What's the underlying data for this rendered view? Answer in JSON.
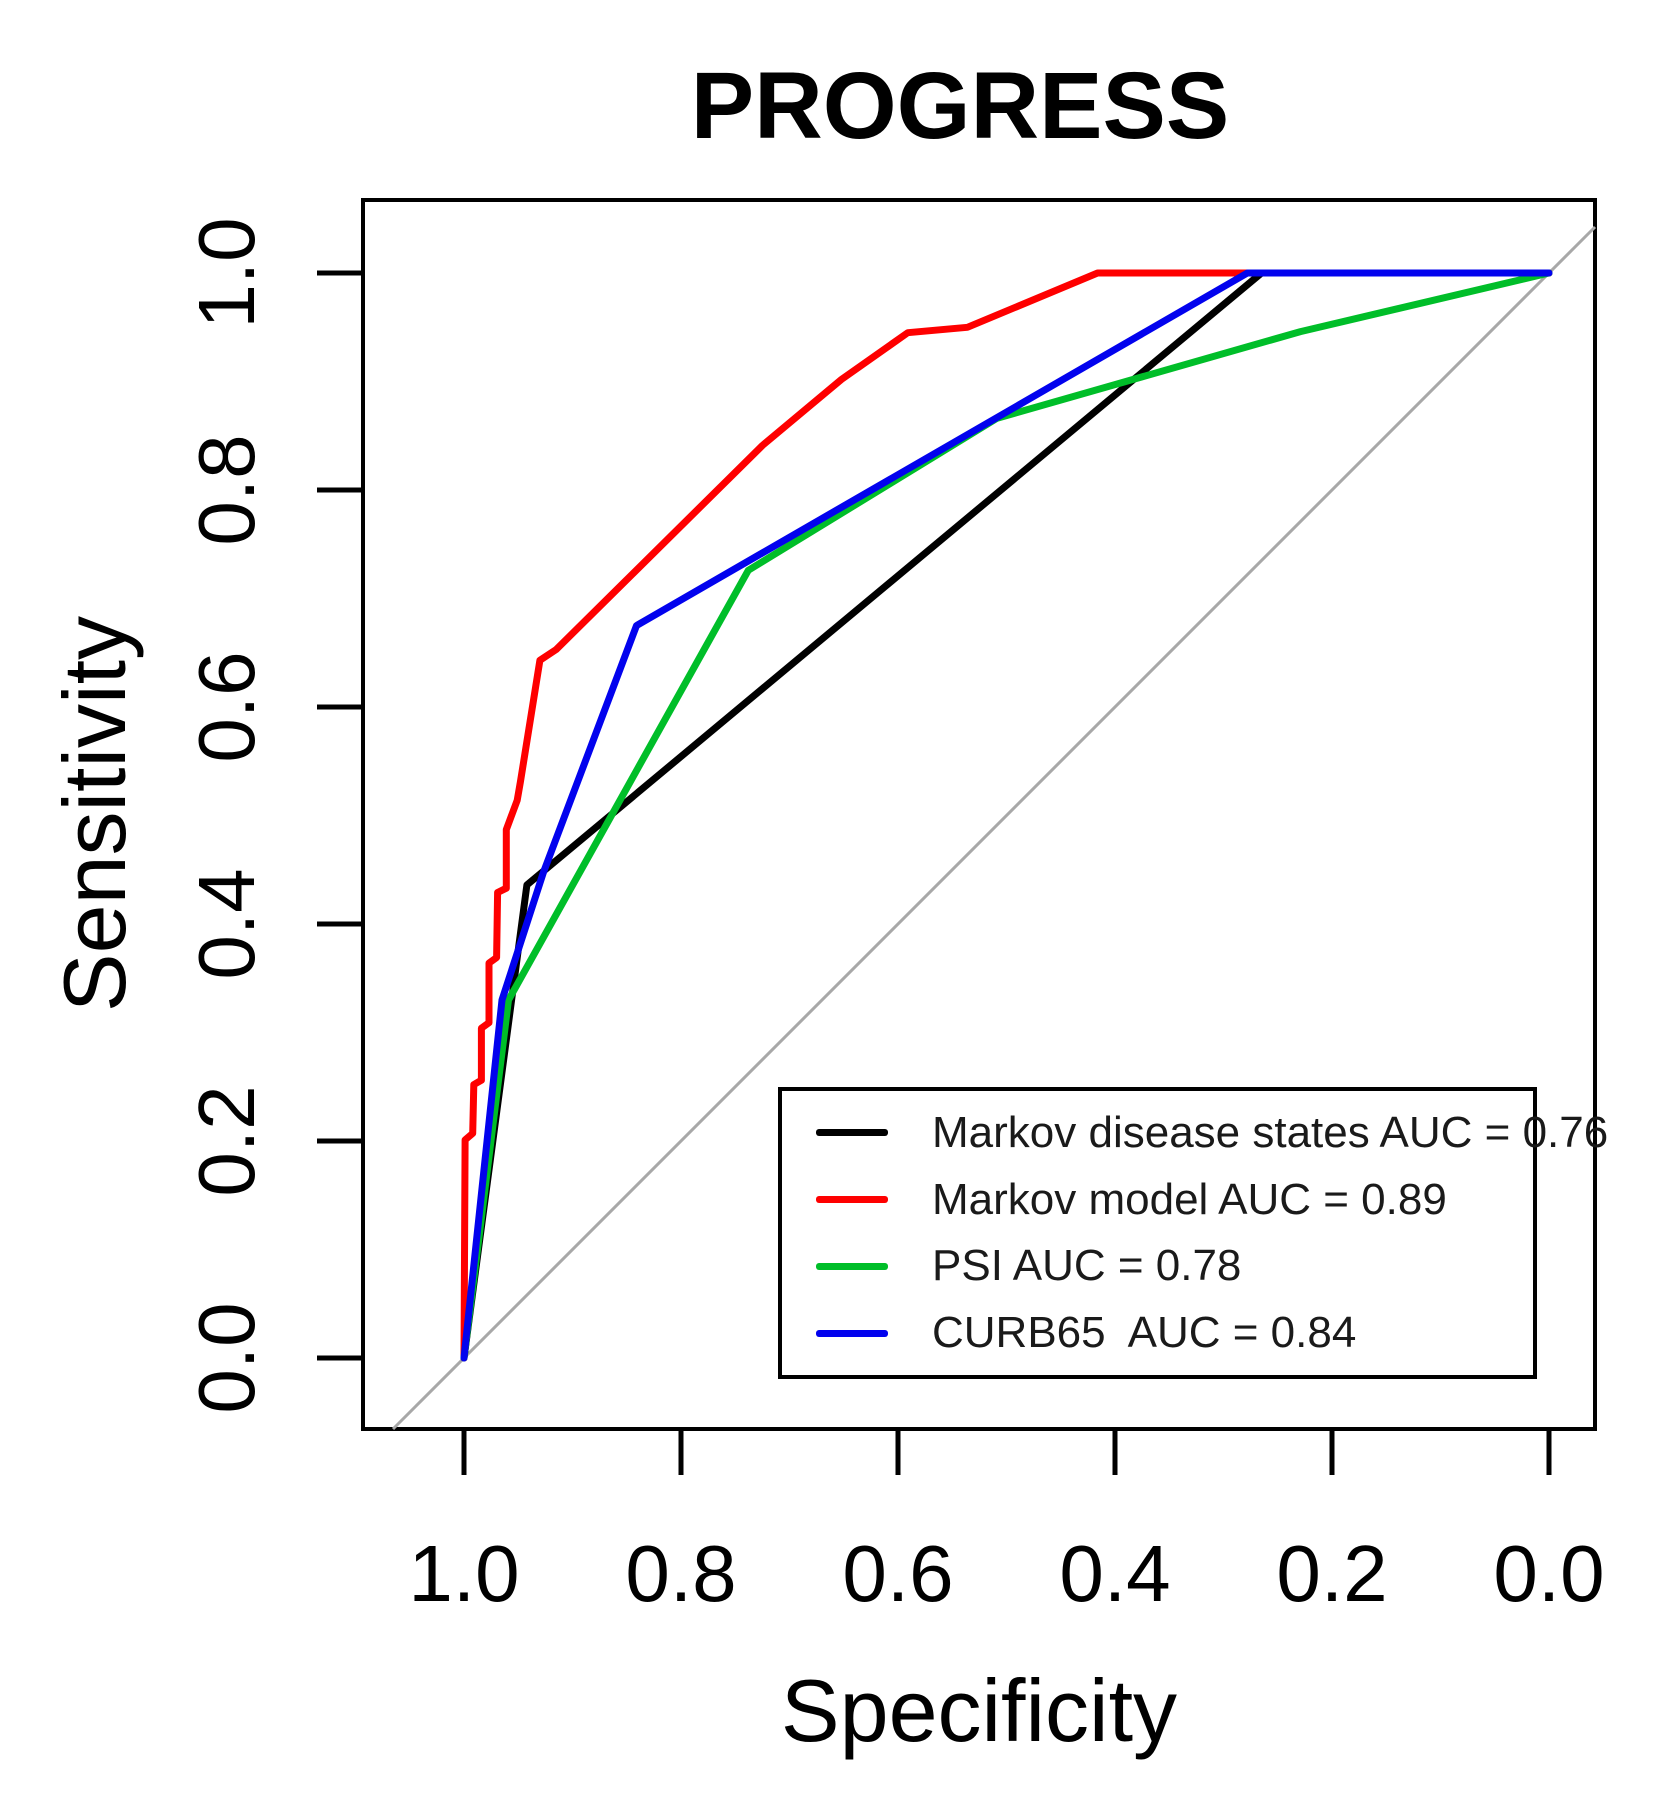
{
  "title": "PROGRESS",
  "axes": {
    "x": {
      "label": "Specificity",
      "tick_labels": [
        "1.0",
        "0.8",
        "0.6",
        "0.4",
        "0.2",
        "0.0"
      ]
    },
    "y": {
      "label": "Sensitivity",
      "tick_labels": [
        "0.0",
        "0.2",
        "0.4",
        "0.6",
        "0.8",
        "1.0"
      ]
    }
  },
  "legend": {
    "items": [
      {
        "label": "Markov disease states AUC = 0.76",
        "color": "#000000"
      },
      {
        "label": "Markov model AUC = 0.89",
        "color": "#FE0000"
      },
      {
        "label": "PSI AUC = 0.78",
        "color": "#00BE29"
      },
      {
        "label": "CURB65  AUC = 0.84",
        "color": "#0202EE"
      }
    ]
  },
  "colors": {
    "axis": "#000000",
    "reference_line": "#A8A8A8",
    "background": "#FFFFFF"
  },
  "chart_data": {
    "type": "line",
    "title": "PROGRESS",
    "xlabel": "Specificity",
    "ylabel": "Sensitivity",
    "x_axis_reversed": true,
    "xlim": [
      1.0,
      0.0
    ],
    "ylim": [
      0.0,
      1.0
    ],
    "x_ticks": [
      1.0,
      0.8,
      0.6,
      0.4,
      0.2,
      0.0
    ],
    "y_ticks": [
      0.0,
      0.2,
      0.4,
      0.6,
      0.8,
      1.0
    ],
    "grid": false,
    "diagonal_reference_line": true,
    "legend_position": "bottom-right",
    "series": [
      {
        "name": "Markov disease states",
        "auc": 0.76,
        "color": "#000000",
        "points_spec_sens": [
          [
            1.0,
            0.0
          ],
          [
            0.942,
            0.436
          ],
          [
            0.265,
            1.0
          ],
          [
            0.0,
            1.0
          ]
        ]
      },
      {
        "name": "Markov model",
        "auc": 0.89,
        "color": "#FE0000",
        "points_spec_sens": [
          [
            1.0,
            0.0
          ],
          [
            0.999,
            0.201
          ],
          [
            0.992,
            0.207
          ],
          [
            0.991,
            0.252
          ],
          [
            0.984,
            0.256
          ],
          [
            0.984,
            0.304
          ],
          [
            0.977,
            0.309
          ],
          [
            0.977,
            0.364
          ],
          [
            0.97,
            0.369
          ],
          [
            0.969,
            0.429
          ],
          [
            0.961,
            0.433
          ],
          [
            0.961,
            0.487
          ],
          [
            0.951,
            0.514
          ],
          [
            0.948,
            0.531
          ],
          [
            0.93,
            0.643
          ],
          [
            0.915,
            0.653
          ],
          [
            0.725,
            0.841
          ],
          [
            0.652,
            0.902
          ],
          [
            0.591,
            0.945
          ],
          [
            0.536,
            0.95
          ],
          [
            0.416,
            1.0
          ],
          [
            0.0,
            1.0
          ]
        ]
      },
      {
        "name": "PSI",
        "auc": 0.78,
        "color": "#00BE29",
        "points_spec_sens": [
          [
            1.0,
            0.0
          ],
          [
            0.959,
            0.33
          ],
          [
            0.738,
            0.726
          ],
          [
            0.509,
            0.866
          ],
          [
            0.229,
            0.946
          ],
          [
            0.0,
            1.0
          ]
        ]
      },
      {
        "name": "CURB65",
        "auc": 0.84,
        "color": "#0202EE",
        "points_spec_sens": [
          [
            1.0,
            0.0
          ],
          [
            0.965,
            0.33
          ],
          [
            0.927,
            0.447
          ],
          [
            0.841,
            0.675
          ],
          [
            0.278,
            1.0
          ],
          [
            0.0,
            1.0
          ]
        ]
      }
    ]
  }
}
